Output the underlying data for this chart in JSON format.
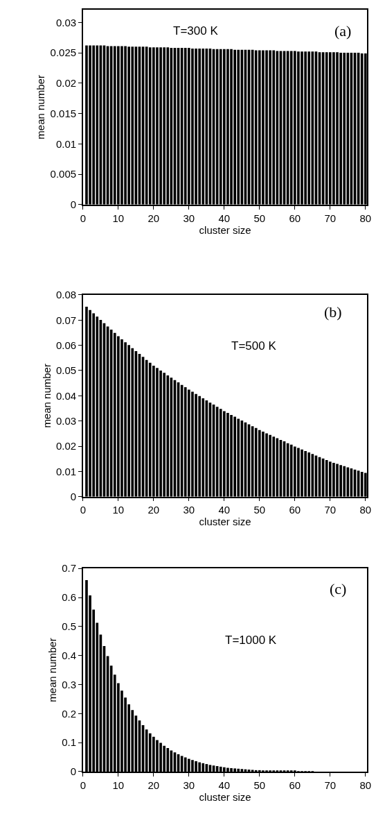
{
  "chart_data": [
    {
      "type": "bar",
      "xlabel": "cluster size",
      "ylabel": "mean number",
      "annotations": [
        "T=300 K",
        "(a)"
      ],
      "color": "#000000",
      "x": [
        1,
        2,
        3,
        4,
        5,
        6,
        7,
        8,
        9,
        10,
        11,
        12,
        13,
        14,
        15,
        16,
        17,
        18,
        19,
        20,
        21,
        22,
        23,
        24,
        25,
        26,
        27,
        28,
        29,
        30,
        31,
        32,
        33,
        34,
        35,
        36,
        37,
        38,
        39,
        40,
        41,
        42,
        43,
        44,
        45,
        46,
        47,
        48,
        49,
        50,
        51,
        52,
        53,
        54,
        55,
        56,
        57,
        58,
        59,
        60,
        61,
        62,
        63,
        64,
        65,
        66,
        67,
        68,
        69,
        70,
        71,
        72,
        73,
        74,
        75,
        76,
        77,
        78,
        79,
        80
      ],
      "values": [
        0.0262,
        0.0262,
        0.0262,
        0.0262,
        0.0262,
        0.0262,
        0.0261,
        0.0261,
        0.0261,
        0.0261,
        0.0261,
        0.0261,
        0.026,
        0.026,
        0.026,
        0.026,
        0.026,
        0.026,
        0.0259,
        0.0259,
        0.0259,
        0.0259,
        0.0259,
        0.0259,
        0.0258,
        0.0258,
        0.0258,
        0.0258,
        0.0258,
        0.0258,
        0.0257,
        0.0257,
        0.0257,
        0.0257,
        0.0257,
        0.0257,
        0.0256,
        0.0256,
        0.0256,
        0.0256,
        0.0256,
        0.0256,
        0.0255,
        0.0255,
        0.0255,
        0.0255,
        0.0255,
        0.0255,
        0.0254,
        0.0254,
        0.0254,
        0.0254,
        0.0254,
        0.0254,
        0.0253,
        0.0253,
        0.0253,
        0.0253,
        0.0253,
        0.0253,
        0.0252,
        0.0252,
        0.0252,
        0.0252,
        0.0252,
        0.0252,
        0.0251,
        0.0251,
        0.0251,
        0.0251,
        0.0251,
        0.0251,
        0.025,
        0.025,
        0.025,
        0.025,
        0.025,
        0.025,
        0.0249,
        0.0249
      ],
      "xlim": [
        0,
        80.5
      ],
      "xticks": [
        0,
        10,
        20,
        30,
        40,
        50,
        60,
        70,
        80
      ],
      "ylim": [
        0,
        0.0321
      ],
      "yticks": [
        0,
        0.005,
        0.01,
        0.015,
        0.02,
        0.025,
        0.03
      ]
    },
    {
      "type": "bar",
      "xlabel": "cluster size",
      "ylabel": "mean number",
      "annotations": [
        "T=500 K",
        "(b)"
      ],
      "color": "#000000",
      "x": [
        1,
        2,
        3,
        4,
        5,
        6,
        7,
        8,
        9,
        10,
        11,
        12,
        13,
        14,
        15,
        16,
        17,
        18,
        19,
        20,
        21,
        22,
        23,
        24,
        25,
        26,
        27,
        28,
        29,
        30,
        31,
        32,
        33,
        34,
        35,
        36,
        37,
        38,
        39,
        40,
        41,
        42,
        43,
        44,
        45,
        46,
        47,
        48,
        49,
        50,
        51,
        52,
        53,
        54,
        55,
        56,
        57,
        58,
        59,
        60,
        61,
        62,
        63,
        64,
        65,
        66,
        67,
        68,
        69,
        70,
        71,
        72,
        73,
        74,
        75,
        76,
        77,
        78,
        79,
        80
      ],
      "values": [
        0.0753,
        0.074,
        0.0727,
        0.0714,
        0.0701,
        0.0688,
        0.0675,
        0.0662,
        0.0649,
        0.0636,
        0.0624,
        0.0612,
        0.0601,
        0.0589,
        0.0577,
        0.0566,
        0.0554,
        0.0542,
        0.0531,
        0.0519,
        0.051,
        0.05,
        0.0491,
        0.0481,
        0.0472,
        0.0462,
        0.0453,
        0.0443,
        0.0434,
        0.0424,
        0.0416,
        0.0407,
        0.0399,
        0.039,
        0.0382,
        0.0373,
        0.0365,
        0.0356,
        0.0348,
        0.0339,
        0.0332,
        0.0324,
        0.0317,
        0.0309,
        0.0302,
        0.0294,
        0.0287,
        0.0279,
        0.0272,
        0.0264,
        0.0258,
        0.0251,
        0.0245,
        0.0238,
        0.0232,
        0.0225,
        0.0219,
        0.0212,
        0.0206,
        0.0199,
        0.0193,
        0.0187,
        0.0181,
        0.0175,
        0.0169,
        0.0163,
        0.0157,
        0.0151,
        0.0145,
        0.0139,
        0.0134,
        0.013,
        0.0125,
        0.0121,
        0.0116,
        0.0112,
        0.0107,
        0.0103,
        0.0098,
        0.0094
      ],
      "xlim": [
        0,
        80.5
      ],
      "xticks": [
        0,
        10,
        20,
        30,
        40,
        50,
        60,
        70,
        80
      ],
      "ylim": [
        0,
        0.08
      ],
      "yticks": [
        0,
        0.01,
        0.02,
        0.03,
        0.04,
        0.05,
        0.06,
        0.07,
        0.08
      ]
    },
    {
      "type": "bar",
      "xlabel": "cluster size",
      "ylabel": "mean number",
      "annotations": [
        "T=1000 K",
        "(c)"
      ],
      "color": "#000000",
      "x": [
        1,
        2,
        3,
        4,
        5,
        6,
        7,
        8,
        9,
        10,
        11,
        12,
        13,
        14,
        15,
        16,
        17,
        18,
        19,
        20,
        21,
        22,
        23,
        24,
        25,
        26,
        27,
        28,
        29,
        30,
        31,
        32,
        33,
        34,
        35,
        36,
        37,
        38,
        39,
        40,
        41,
        42,
        43,
        44,
        45,
        46,
        47,
        48,
        49,
        50,
        51,
        52,
        53,
        54,
        55,
        56,
        57,
        58,
        59,
        60,
        61,
        62,
        63,
        64,
        65,
        66,
        67,
        68,
        69,
        70,
        71,
        72,
        73,
        74,
        75,
        76,
        77,
        78,
        79,
        80
      ],
      "values": [
        0.66,
        0.607,
        0.558,
        0.513,
        0.472,
        0.433,
        0.398,
        0.365,
        0.334,
        0.305,
        0.279,
        0.255,
        0.232,
        0.212,
        0.193,
        0.176,
        0.16,
        0.145,
        0.132,
        0.12,
        0.109,
        0.099,
        0.089,
        0.081,
        0.073,
        0.066,
        0.06,
        0.054,
        0.049,
        0.044,
        0.04,
        0.036,
        0.032,
        0.029,
        0.026,
        0.023,
        0.021,
        0.019,
        0.017,
        0.015,
        0.013,
        0.012,
        0.011,
        0.01,
        0.009,
        0.008,
        0.007,
        0.006,
        0.005,
        0.005,
        0.004,
        0.004,
        0.004,
        0.003,
        0.003,
        0.003,
        0.002,
        0.002,
        0.002,
        0.002,
        0.001,
        0.001,
        0.001,
        0.001,
        0.001,
        0,
        0,
        0,
        0,
        0,
        0,
        0,
        0,
        0,
        0,
        0,
        0,
        0,
        0,
        0
      ],
      "xlim": [
        0,
        80.5
      ],
      "xticks": [
        0,
        10,
        20,
        30,
        40,
        50,
        60,
        70,
        80
      ],
      "ylim": [
        0,
        0.7
      ],
      "yticks": [
        0,
        0.1,
        0.2,
        0.3,
        0.4,
        0.5,
        0.6,
        0.7
      ]
    }
  ]
}
